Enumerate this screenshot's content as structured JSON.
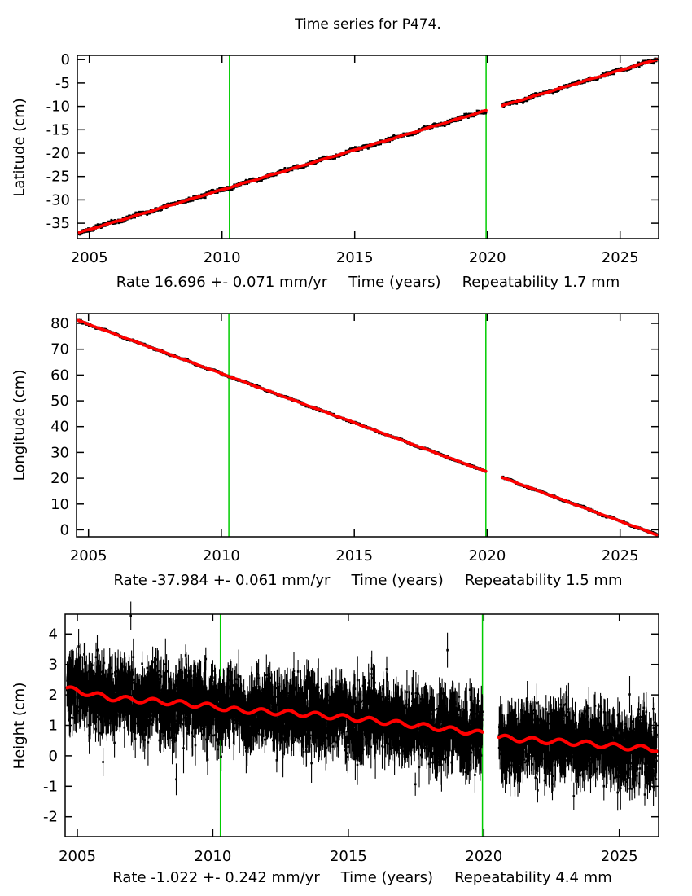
{
  "title": "Time series for P474.",
  "station": "P474",
  "colors": {
    "background": "#ffffff",
    "data_points": "#000000",
    "trend_line": "#ff0000",
    "event_line": "#00cc00",
    "axis": "#000000",
    "text": "#000000"
  },
  "chart_data": [
    {
      "name": "latitude",
      "type": "scatter",
      "ylabel": "Latitude (cm)",
      "xlabel_rate": "Rate 16.696 +- 0.071 mm/yr",
      "xlabel_time": "Time (years)",
      "xlabel_rep": "Repeatability 1.7 mm",
      "rate_mm_per_yr": 16.696,
      "rate_uncertainty_mm_per_yr": 0.071,
      "repeatability_mm": 1.7,
      "xlim": [
        2004.55,
        2026.45
      ],
      "ylim_top": 0.9,
      "ylim_bottom": -38.3,
      "xticks": [
        2005,
        2010,
        2015,
        2020,
        2025
      ],
      "yticks": [
        0,
        -5,
        -10,
        -15,
        -20,
        -25,
        -30,
        -35
      ],
      "event_lines": [
        2010.28,
        2019.95
      ],
      "data_start": 2004.62,
      "data_end": 2026.38,
      "gap": [
        2019.95,
        2020.56
      ],
      "trend_points": [
        [
          2004.62,
          -37.0
        ],
        [
          2026.38,
          0.05
        ]
      ],
      "seasonal_amp": 0.06,
      "seasonal_phase": 0.55,
      "noise_sigma": 0.17,
      "wander_amp": 0.22,
      "style": "band",
      "seed": 11
    },
    {
      "name": "longitude",
      "type": "scatter",
      "ylabel": "Longitude (cm)",
      "xlabel_rate": "Rate -37.984 +- 0.061 mm/yr",
      "xlabel_time": "Time (years)",
      "xlabel_rep": "Repeatability 1.5 mm",
      "rate_mm_per_yr": -37.984,
      "rate_uncertainty_mm_per_yr": 0.061,
      "repeatability_mm": 1.5,
      "xlim": [
        2004.55,
        2026.45
      ],
      "ylim_top": 83.8,
      "ylim_bottom": -2.7,
      "xticks": [
        2005,
        2010,
        2015,
        2020,
        2025
      ],
      "yticks": [
        80,
        70,
        60,
        50,
        40,
        30,
        20,
        10,
        0
      ],
      "event_lines": [
        2010.28,
        2019.95
      ],
      "data_start": 2004.62,
      "data_end": 2026.38,
      "gap": [
        2019.95,
        2020.56
      ],
      "trend_points": [
        [
          2004.62,
          81.1
        ],
        [
          2026.38,
          -1.9
        ]
      ],
      "seasonal_amp": 0.08,
      "seasonal_phase": 0.55,
      "noise_sigma": 0.15,
      "wander_amp": 0.24,
      "style": "band",
      "seed": 22
    },
    {
      "name": "height",
      "type": "scatter-errorbars",
      "ylabel": "Height (cm)",
      "xlabel_rate": "Rate -1.022 +- 0.242 mm/yr",
      "xlabel_time": "Time (years)",
      "xlabel_rep": "Repeatability 4.4 mm",
      "rate_mm_per_yr": -1.022,
      "rate_uncertainty_mm_per_yr": 0.242,
      "repeatability_mm": 4.4,
      "xlim": [
        2004.55,
        2026.45
      ],
      "ylim_top": 4.65,
      "ylim_bottom": -2.65,
      "xticks": [
        2005,
        2010,
        2015,
        2020,
        2025
      ],
      "yticks": [
        4,
        3,
        2,
        1,
        0,
        -1,
        -2
      ],
      "event_lines": [
        2010.28,
        2019.95
      ],
      "data_start": 2004.62,
      "data_end": 2026.38,
      "gap": [
        2019.95,
        2020.56
      ],
      "trend_points": [
        [
          2004.62,
          2.2
        ],
        [
          2006.2,
          1.9
        ],
        [
          2008.5,
          1.75
        ],
        [
          2010.28,
          1.6
        ],
        [
          2010.5,
          1.52
        ],
        [
          2013.0,
          1.4
        ],
        [
          2015.0,
          1.25
        ],
        [
          2016.5,
          1.1
        ],
        [
          2018.0,
          0.95
        ],
        [
          2019.95,
          0.73
        ],
        [
          2020.56,
          0.6
        ],
        [
          2022.0,
          0.5
        ],
        [
          2023.5,
          0.42
        ],
        [
          2025.0,
          0.3
        ],
        [
          2026.38,
          0.22
        ]
      ],
      "seasonal_amp": 0.085,
      "seasonal_phase": 0.55,
      "noise_sigma": 0.5,
      "wander_amp": 0.22,
      "errorbar_base": 0.35,
      "errorbar_spread": 0.2,
      "style": "errorbars",
      "seed": 33
    }
  ]
}
